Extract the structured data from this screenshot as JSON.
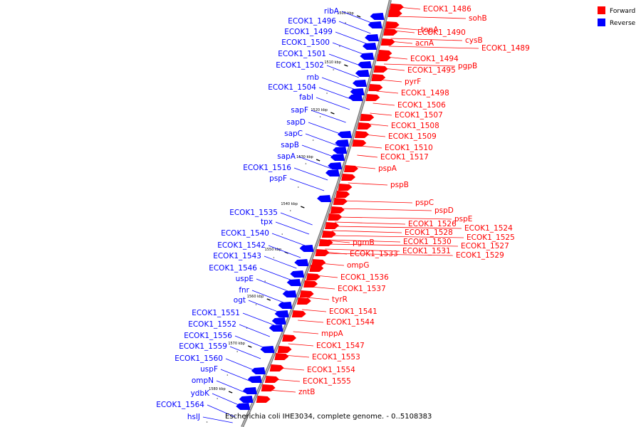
{
  "caption": "Escherichia coli IHE3034, complete genome. - 0..5108383",
  "legend": [
    {
      "label": "Forward",
      "color": "#ff0000"
    },
    {
      "label": "Reverse",
      "color": "#0000ff"
    }
  ],
  "colors": {
    "forward": "#ff0000",
    "reverse": "#0000ff",
    "backbone": "#808080",
    "tick": "#000000"
  },
  "ticks": [
    "1500 kbp",
    "1510 kbp",
    "1520 kbp",
    "1530 kbp",
    "1540 kbp",
    "1550 kbp",
    "1560 kbp",
    "1570 kbp",
    "1580 kbp"
  ],
  "forward_genes": [
    "ECOK1_1486",
    "sohB",
    "topA",
    "ECOK1_1490",
    "cysB",
    "acnA",
    "ECOK1_1489",
    "ECOK1_1494",
    "pgpB",
    "ECOK1_1495",
    "pyrF",
    "ECOK1_1498",
    "ECOK1_1506",
    "ECOK1_1507",
    "ECOK1_1508",
    "ECOK1_1509",
    "ECOK1_1510",
    "ECOK1_1517",
    "pspA",
    "pspB",
    "pspC",
    "pspD",
    "pspE",
    "ECOK1_1524",
    "ECOK1_1526",
    "ECOK1_1525",
    "ECOK1_1528",
    "ECOK1_1527",
    "ECOK1_1530",
    "ECOK1_1529",
    "ECOK1_1531",
    "pgmB",
    "ECOK1_1533",
    "ompG",
    "ECOK1_1536",
    "ECOK1_1537",
    "tyrR",
    "ECOK1_1541",
    "ECOK1_1544",
    "mppA",
    "ECOK1_1547",
    "ECOK1_1553",
    "ECOK1_1554",
    "ECOK1_1555",
    "zntB"
  ],
  "reverse_genes": [
    "ribA",
    "ECOK1_1496",
    "ECOK1_1499",
    "ECOK1_1500",
    "ECOK1_1501",
    "ECOK1_1502",
    "rnb",
    "ECOK1_1504",
    "fabI",
    "sapF",
    "sapD",
    "sapC",
    "sapB",
    "sapA",
    "ECOK1_1516",
    "pspF",
    "ECOK1_1535",
    "tpx",
    "ECOK1_1540",
    "ECOK1_1542",
    "ECOK1_1543",
    "ECOK1_1546",
    "uspE",
    "fnr",
    "ogt",
    "ECOK1_1551",
    "ECOK1_1552",
    "ECOK1_1556",
    "ECOK1_1559",
    "ECOK1_1560",
    "uspF",
    "ompN",
    "ydbK",
    "ECOK1_1564",
    "hslJ"
  ]
}
